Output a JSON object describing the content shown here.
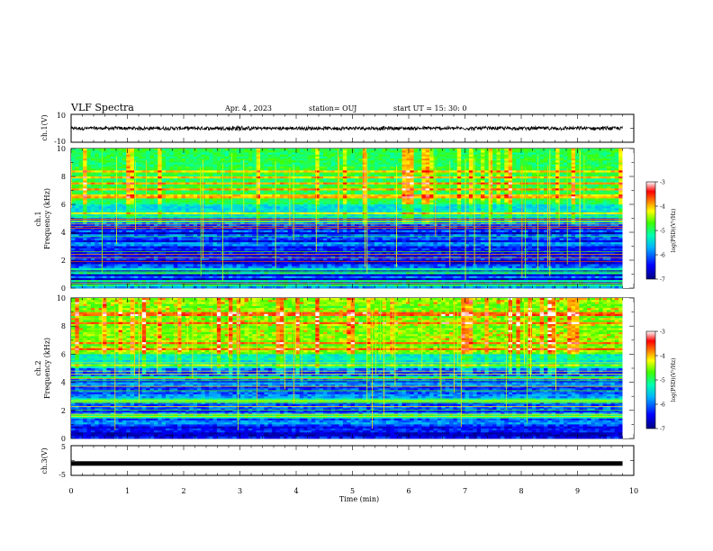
{
  "header": {
    "title": "VLF Spectra",
    "date": "Apr. 4 , 2023",
    "station": "station= OUJ",
    "start": "start UT =  15: 30: 0"
  },
  "chart_data": [
    {
      "id": "ch1-waveform",
      "type": "line",
      "ylabel": "ch.1(V)",
      "ylim": [
        -10,
        10
      ],
      "yticks": [
        "10",
        "-10"
      ],
      "xlim": [
        0,
        10
      ],
      "signal": "dense noise around 0 V, amplitude about 1 V, ending near 9.8 min",
      "color": "#000000"
    },
    {
      "id": "ch1-spectrogram",
      "type": "heatmap",
      "ylabel": "ch.1\nFrequency (kHz)",
      "ylim": [
        0,
        10
      ],
      "yticks": [
        0,
        2,
        4,
        6,
        8,
        10
      ],
      "xlim": [
        0,
        9.8
      ],
      "colorbar": {
        "label": "log(PSD)(V²/Hz)",
        "range": [
          -7,
          -3
        ],
        "ticks": [
          -3,
          -4,
          -5,
          -6,
          -7
        ]
      }
    },
    {
      "id": "ch2-spectrogram",
      "type": "heatmap",
      "ylabel": "ch.2\nFrequency (kHz)",
      "ylim": [
        0,
        10
      ],
      "yticks": [
        0,
        2,
        4,
        6,
        8,
        10
      ],
      "xlim": [
        0,
        9.8
      ],
      "colorbar": {
        "label": "log(PSD)(V²/Hz)",
        "range": [
          -7,
          -3
        ],
        "ticks": [
          -3,
          -4,
          -5,
          -6,
          -7
        ]
      }
    },
    {
      "id": "ch3-waveform",
      "type": "line",
      "ylabel": "ch.3(V)",
      "ylim": [
        -5,
        5
      ],
      "yticks": [
        "5",
        "-5"
      ],
      "xlim": [
        0,
        10
      ],
      "signal": "flat thick line near -1 V",
      "color": "#000000"
    }
  ],
  "xaxis": {
    "label": "Time  (min)",
    "ticks": [
      0,
      1,
      2,
      3,
      4,
      5,
      6,
      7,
      8,
      9,
      10
    ]
  },
  "colormap": [
    "#000080",
    "#0000ff",
    "#00b0ff",
    "#00ffb0",
    "#40ff00",
    "#ffff00",
    "#ff8000",
    "#ff0000",
    "#ffffff"
  ]
}
